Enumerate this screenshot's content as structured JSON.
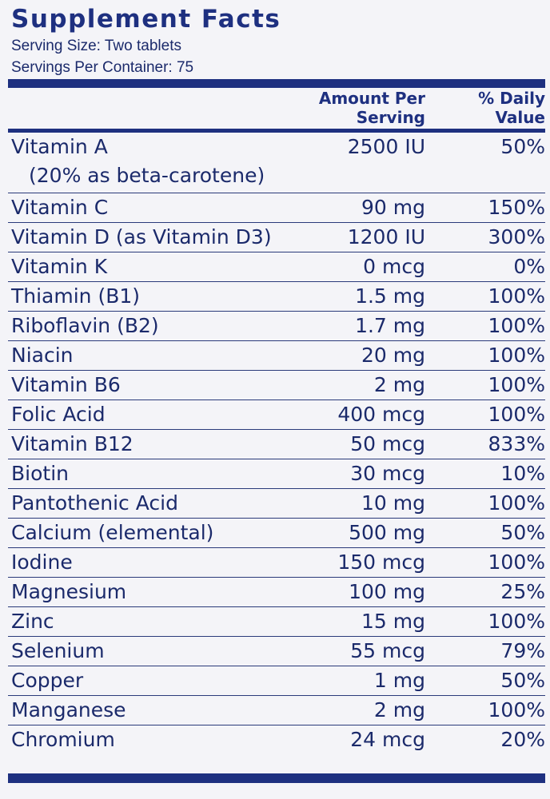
{
  "label": {
    "title": "Supplement Facts",
    "serving_size": "Serving Size: Two tablets",
    "servings_per_container": "Servings Per Container: 75",
    "header": {
      "amount_line1": "Amount Per",
      "amount_line2": "Serving",
      "dv_line1": "% Daily",
      "dv_line2": "Value"
    },
    "rows": [
      {
        "name": "Vitamin A",
        "sub": "(20% as beta-carotene)",
        "amount": "2500 IU",
        "dv": "50%"
      },
      {
        "name": "Vitamin C",
        "amount": "90 mg",
        "dv": "150%"
      },
      {
        "name": "Vitamin D (as Vitamin D3)",
        "amount": "1200 IU",
        "dv": "300%"
      },
      {
        "name": "Vitamin K",
        "amount": "0 mcg",
        "dv": "0%"
      },
      {
        "name": "Thiamin (B1)",
        "amount": "1.5 mg",
        "dv": "100%"
      },
      {
        "name": "Riboflavin (B2)",
        "amount": "1.7 mg",
        "dv": "100%"
      },
      {
        "name": "Niacin",
        "amount": "20 mg",
        "dv": "100%"
      },
      {
        "name": "Vitamin B6",
        "amount": "2 mg",
        "dv": "100%"
      },
      {
        "name": "Folic Acid",
        "amount": "400 mcg",
        "dv": "100%"
      },
      {
        "name": "Vitamin B12",
        "amount": "50 mcg",
        "dv": "833%"
      },
      {
        "name": "Biotin",
        "amount": "30 mcg",
        "dv": "10%"
      },
      {
        "name": "Pantothenic Acid",
        "amount": "10 mg",
        "dv": "100%"
      },
      {
        "name": "Calcium (elemental)",
        "amount": "500 mg",
        "dv": "50%"
      },
      {
        "name": "Iodine",
        "amount": "150 mcg",
        "dv": "100%"
      },
      {
        "name": "Magnesium",
        "amount": "100 mg",
        "dv": "25%"
      },
      {
        "name": "Zinc",
        "amount": "15 mg",
        "dv": "100%"
      },
      {
        "name": "Selenium",
        "amount": "55 mcg",
        "dv": "79%"
      },
      {
        "name": "Copper",
        "amount": "1 mg",
        "dv": "50%"
      },
      {
        "name": "Manganese",
        "amount": "2 mg",
        "dv": "100%"
      },
      {
        "name": "Chromium",
        "amount": "24 mcg",
        "dv": "20%"
      }
    ]
  },
  "colors": {
    "ink": "#1b2a6b",
    "rule": "#1e3080",
    "background": "#f4f4f8"
  }
}
